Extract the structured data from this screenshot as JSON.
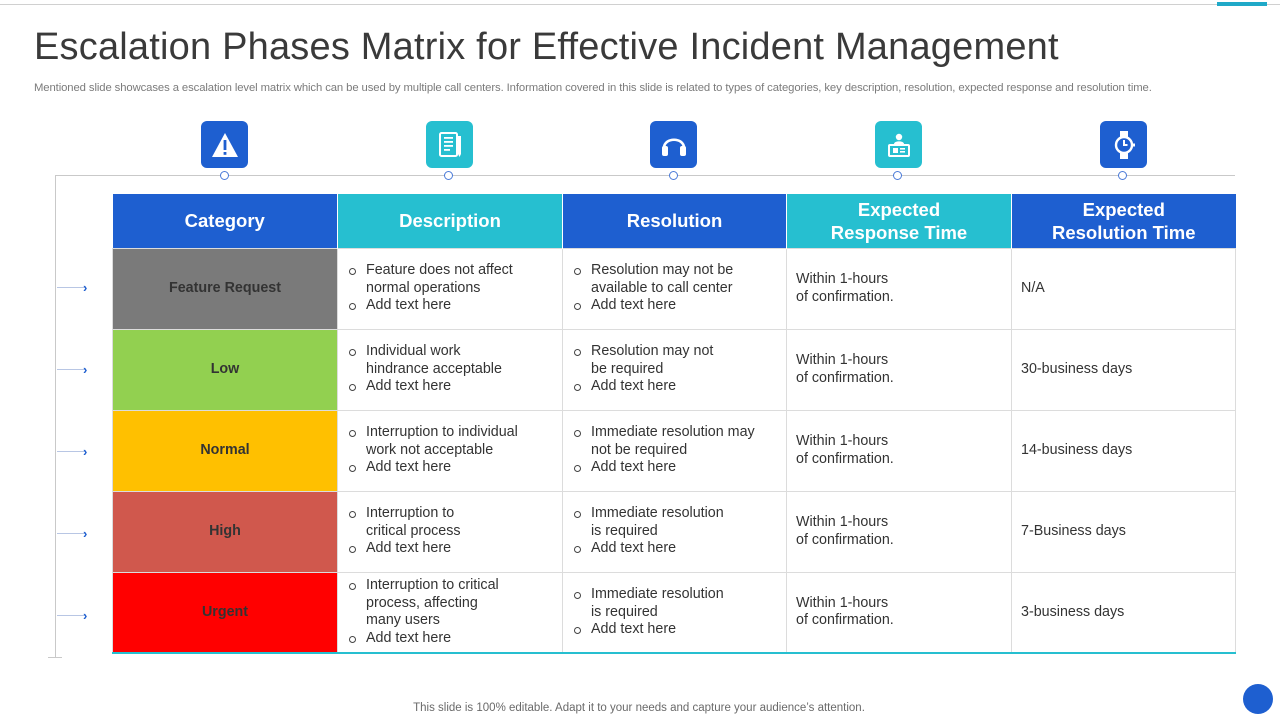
{
  "title": "Escalation Phases Matrix for Effective Incident Management",
  "subtitle": "Mentioned slide showcases a escalation level matrix which can be used by multiple call centers. Information covered in this slide is related to types of categories, key description, resolution, expected response and resolution time.",
  "footer": "This slide is 100% editable. Adapt it to your needs and capture your audience’s attention.",
  "colors": {
    "header_blue": "#1e5fd0",
    "header_teal": "#26bfd0",
    "feature_request": "#7a7a7a",
    "low": "#92d050",
    "normal": "#ffc000",
    "high": "#d0584d",
    "urgent": "#ff0000"
  },
  "icons": [
    "warning-icon",
    "document-icon",
    "headset-icon",
    "computer-support-icon",
    "watch-icon"
  ],
  "headers": {
    "category": "Category",
    "description": "Description",
    "resolution": "Resolution",
    "response_l1": "Expected",
    "response_l2": "Response Time",
    "restime_l1": "Expected",
    "restime_l2": "Resolution Time"
  },
  "rows": [
    {
      "category": "Feature Request",
      "desc": [
        "Feature does not affect",
        "normal operations",
        "Add text here"
      ],
      "res": [
        "Resolution may not be",
        "available to call center",
        "Add text here"
      ],
      "response": [
        "Within 1-hours",
        "of confirmation."
      ],
      "time": "N/A"
    },
    {
      "category": "Low",
      "desc": [
        "Individual  work",
        "hindrance acceptable",
        "Add text here"
      ],
      "res": [
        "Resolution may not",
        "be required",
        "Add text here"
      ],
      "response": [
        "Within 1-hours",
        "of confirmation."
      ],
      "time": "30-business days"
    },
    {
      "category": "Normal",
      "desc": [
        "Interruption to individual",
        "work not acceptable",
        "Add text here"
      ],
      "res": [
        "Immediate resolution may",
        "not be required",
        "Add text here"
      ],
      "response": [
        "Within 1-hours",
        "of confirmation."
      ],
      "time": "14-business days"
    },
    {
      "category": "High",
      "desc": [
        "Interruption to",
        "critical process",
        "Add text here"
      ],
      "res": [
        "Immediate resolution",
        "is required",
        "Add text here"
      ],
      "response": [
        "Within 1-hours",
        "of confirmation."
      ],
      "time": "7-Business days"
    },
    {
      "category": "Urgent",
      "desc": [
        "Interruption to critical",
        "process, affecting",
        "many users",
        "Add text here"
      ],
      "res": [
        "Immediate resolution",
        "is required",
        "Add text here"
      ],
      "response": [
        "Within 1-hours",
        "of confirmation."
      ],
      "time": "3-business days"
    }
  ]
}
